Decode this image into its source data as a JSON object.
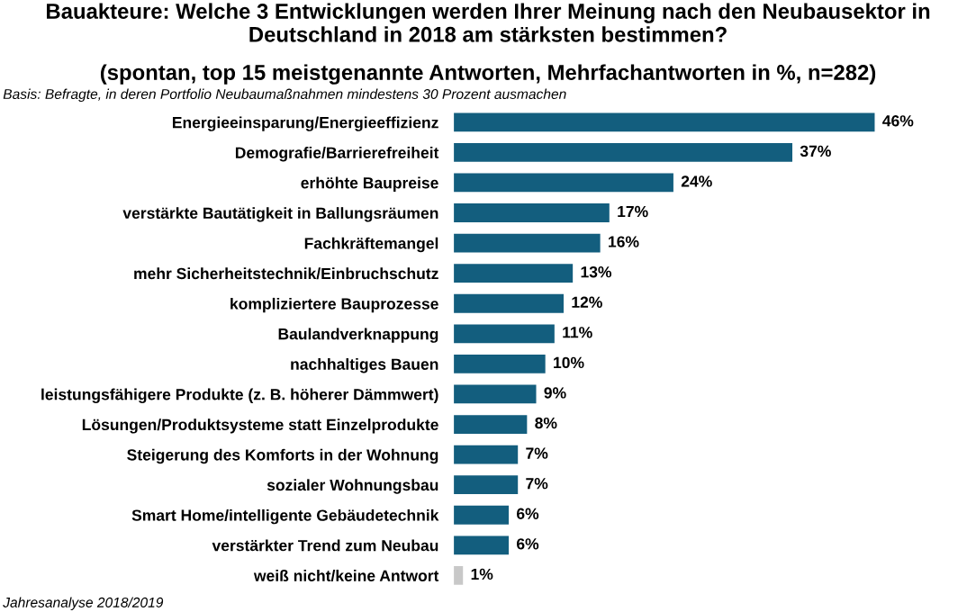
{
  "chart_data": {
    "type": "bar",
    "orientation": "horizontal",
    "title": "Bauakteure: Welche 3 Entwicklungen werden Ihrer Meinung nach den Neubausektor in Deutschland in 2018 am stärksten bestimmen?",
    "subtitle": "(spontan, top 15 meistgenannte Antworten, Mehrfachantworten in %, n=282)",
    "annotations": [
      "Basis: Befragte, in deren Portfolio Neubaumaßnahmen mindestens 30 Prozent ausmachen",
      "Jahresanalyse 2018/2019"
    ],
    "categories": [
      "Energieeinsparung/Energieeffizienz",
      "Demografie/Barrierefreiheit",
      "erhöhte Baupreise",
      "verstärkte Bautätigkeit in Ballungsräumen",
      "Fachkräftemangel",
      "mehr Sicherheitstechnik/Einbruchschutz",
      "kompliziertere Bauprozesse",
      "Baulandverknappung",
      "nachhaltiges Bauen",
      "leistungsfähigere Produkte (z. B. höherer Dämmwert)",
      "Lösungen/Produktsysteme statt Einzelprodukte",
      "Steigerung des Komforts in der Wohnung",
      "sozialer Wohnungsbau",
      "Smart Home/intelligente Gebäudetechnik",
      "verstärkter Trend zum Neubau",
      "weiß nicht/keine Antwort"
    ],
    "values": [
      46,
      37,
      24,
      17,
      16,
      13,
      12,
      11,
      10,
      9,
      8,
      7,
      7,
      6,
      6,
      1
    ],
    "value_labels": [
      "46%",
      "37%",
      "24%",
      "17%",
      "16%",
      "13%",
      "12%",
      "11%",
      "10%",
      "9%",
      "8%",
      "7%",
      "7%",
      "6%",
      "6%",
      "1%"
    ],
    "colors": [
      "#135e7e",
      "#135e7e",
      "#135e7e",
      "#135e7e",
      "#135e7e",
      "#135e7e",
      "#135e7e",
      "#135e7e",
      "#135e7e",
      "#135e7e",
      "#135e7e",
      "#135e7e",
      "#135e7e",
      "#135e7e",
      "#135e7e",
      "#c8c8c8"
    ]
  }
}
